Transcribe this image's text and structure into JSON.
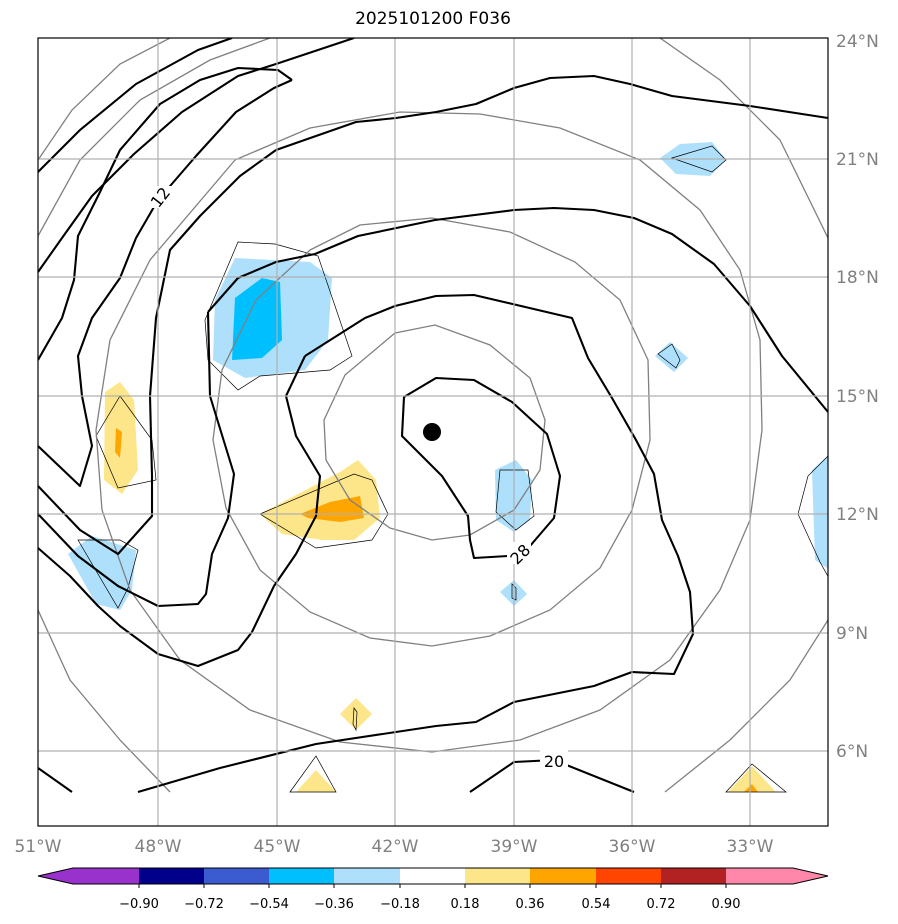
{
  "title": "2025101200 F036",
  "map": {
    "lon_range": [
      -51,
      -31.5
    ],
    "lat_range": [
      4,
      24.5
    ],
    "lon_ticks": [
      "51°W",
      "48°W",
      "45°W",
      "42°W",
      "39°W",
      "36°W",
      "33°W"
    ],
    "lat_ticks": [
      "24°N",
      "21°N",
      "18°N",
      "15°N",
      "12°N",
      "9°N",
      "6°N"
    ],
    "storm_center": {
      "lon": "41.1°W",
      "lat": "14.1°N"
    },
    "contour_labels": [
      "12",
      "28",
      "20"
    ]
  },
  "colorbar": {
    "labels": [
      "−0.90",
      "−0.72",
      "−0.54",
      "−0.36",
      "−0.18",
      "0.18",
      "0.36",
      "0.54",
      "0.72",
      "0.90"
    ],
    "colors": [
      "#9932cc",
      "#00008b",
      "#3b5bd0",
      "#00bfff",
      "#aee0fb",
      "#ffffff",
      "#fde68a",
      "#ffa500",
      "#ff4500",
      "#b22222",
      "#ff88aa"
    ]
  }
}
